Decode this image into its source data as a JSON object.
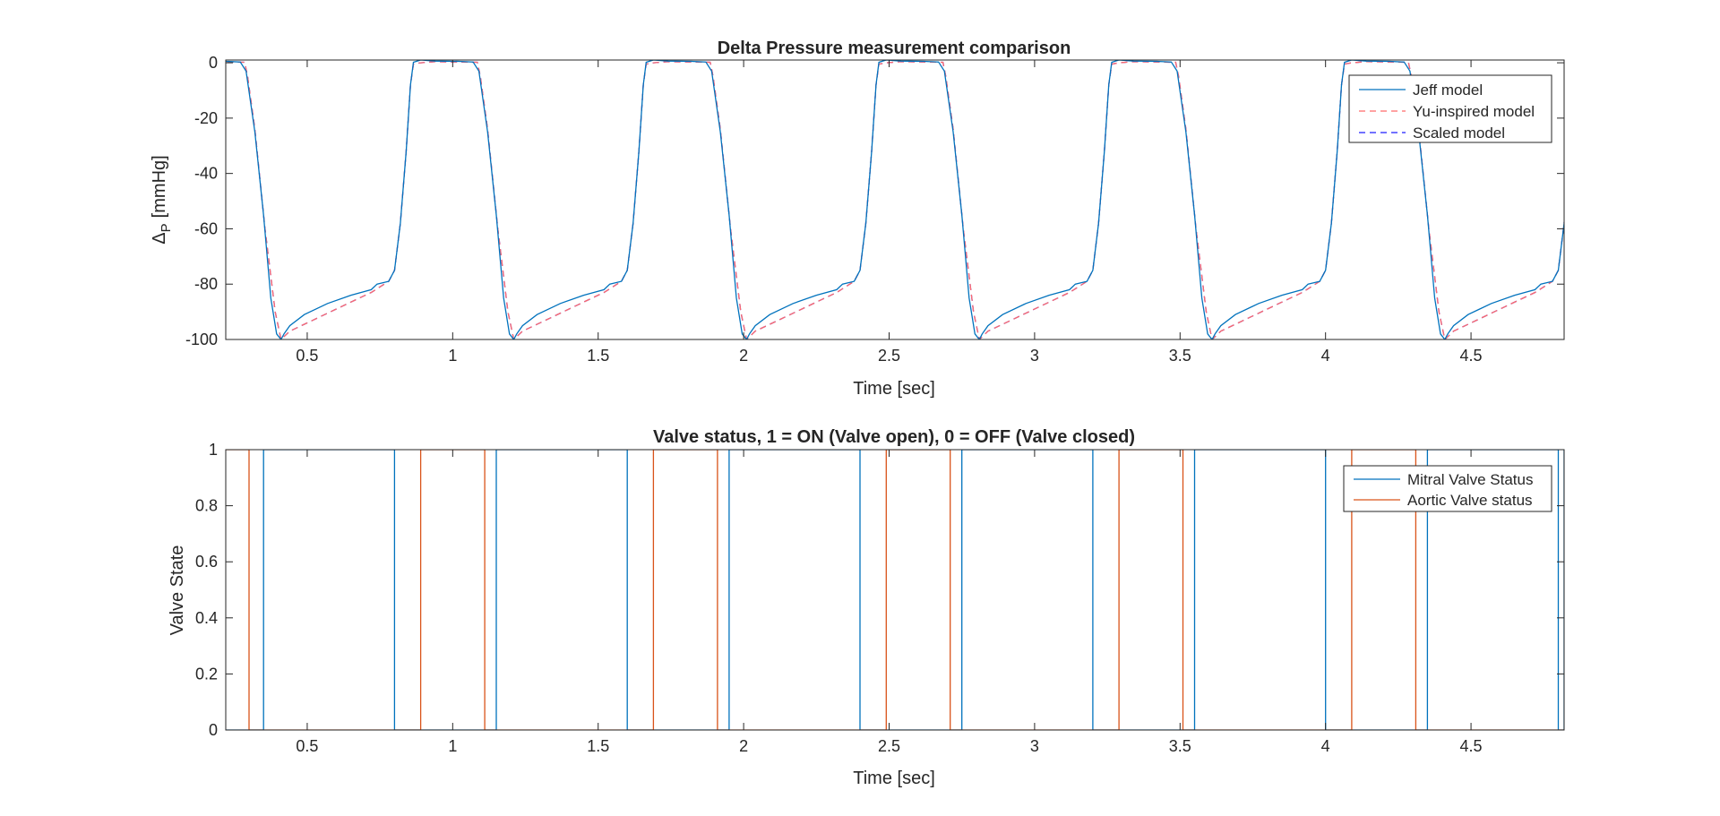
{
  "chart_data": [
    {
      "type": "line",
      "title": "Delta Pressure measurement comparison",
      "xlabel": "Time [sec]",
      "ylabel_main": "Δ",
      "ylabel_sub": "P",
      "ylabel_unit": "[mmHg]",
      "xlim": [
        0.22,
        4.82
      ],
      "ylim": [
        -100,
        1
      ],
      "xticks": [
        0.5,
        1,
        1.5,
        2,
        2.5,
        3,
        3.5,
        4,
        4.5
      ],
      "xtick_labels": [
        "0.5",
        "1",
        "1.5",
        "2",
        "2.5",
        "3",
        "3.5",
        "4",
        "4.5"
      ],
      "yticks": [
        0,
        -20,
        -40,
        -60,
        -80,
        -100
      ],
      "ytick_labels": [
        "0",
        "-20",
        "-40",
        "-60",
        "-80",
        "-100"
      ],
      "grid": false,
      "legend_position": "top-right",
      "period": 0.8,
      "series": [
        {
          "name": "Jeff model",
          "color": "#0072BD",
          "dash": "solid",
          "cycle": [
            [
              0.0,
              0.5
            ],
            [
              0.05,
              0.3
            ],
            [
              0.07,
              -3
            ],
            [
              0.1,
              -25
            ],
            [
              0.13,
              -55
            ],
            [
              0.155,
              -85
            ],
            [
              0.175,
              -98
            ],
            [
              0.19,
              -100
            ],
            [
              0.2,
              -98
            ],
            [
              0.22,
              -95
            ],
            [
              0.27,
              -91
            ],
            [
              0.35,
              -87
            ],
            [
              0.43,
              -84
            ],
            [
              0.5,
              -82
            ],
            [
              0.52,
              -80
            ],
            [
              0.56,
              -79
            ],
            [
              0.58,
              -75
            ],
            [
              0.6,
              -58
            ],
            [
              0.62,
              -32
            ],
            [
              0.635,
              -8
            ],
            [
              0.645,
              0.2
            ],
            [
              0.67,
              1
            ],
            [
              0.72,
              0.6
            ],
            [
              0.8,
              0.5
            ]
          ]
        },
        {
          "name": "Yu-inspired model",
          "color": "#FF6B6B",
          "dash": "dashed",
          "cycle": [
            [
              0.0,
              0.3
            ],
            [
              0.065,
              0.2
            ],
            [
              0.075,
              -5
            ],
            [
              0.1,
              -24
            ],
            [
              0.135,
              -60
            ],
            [
              0.17,
              -90
            ],
            [
              0.19,
              -100
            ],
            [
              0.22,
              -97
            ],
            [
              0.3,
              -93
            ],
            [
              0.4,
              -88
            ],
            [
              0.5,
              -83
            ],
            [
              0.56,
              -79
            ],
            [
              0.58,
              -75
            ],
            [
              0.6,
              -58
            ],
            [
              0.62,
              -32
            ],
            [
              0.635,
              -8
            ],
            [
              0.645,
              -0.5
            ],
            [
              0.67,
              0
            ],
            [
              0.72,
              0.4
            ],
            [
              0.8,
              0.3
            ]
          ]
        },
        {
          "name": "Scaled model",
          "color": "#1F1FFF",
          "dash": "dashed",
          "cycle": [
            [
              0.0,
              0.3
            ],
            [
              0.065,
              0.2
            ],
            [
              0.075,
              -5
            ],
            [
              0.1,
              -24
            ],
            [
              0.135,
              -60
            ],
            [
              0.17,
              -90
            ],
            [
              0.19,
              -100
            ],
            [
              0.22,
              -97
            ],
            [
              0.3,
              -93
            ],
            [
              0.4,
              -88
            ],
            [
              0.5,
              -83
            ],
            [
              0.56,
              -79
            ],
            [
              0.58,
              -75
            ],
            [
              0.6,
              -58
            ],
            [
              0.62,
              -32
            ],
            [
              0.635,
              -8
            ],
            [
              0.645,
              -0.5
            ],
            [
              0.67,
              0
            ],
            [
              0.72,
              0.4
            ],
            [
              0.8,
              0.3
            ]
          ]
        }
      ]
    },
    {
      "type": "line",
      "title": "Valve status, 1 = ON (Valve open), 0 = OFF (Valve closed)",
      "xlabel": "Time [sec]",
      "ylabel": "Valve State",
      "xlim": [
        0.22,
        4.82
      ],
      "ylim": [
        0,
        1
      ],
      "xticks": [
        0.5,
        1,
        1.5,
        2,
        2.5,
        3,
        3.5,
        4,
        4.5
      ],
      "xtick_labels": [
        "0.5",
        "1",
        "1.5",
        "2",
        "2.5",
        "3",
        "3.5",
        "4",
        "4.5"
      ],
      "yticks": [
        0,
        0.2,
        0.4,
        0.6,
        0.8,
        1
      ],
      "ytick_labels": [
        "0",
        "0.2",
        "0.4",
        "0.6",
        "0.8",
        "1"
      ],
      "grid": false,
      "legend_position": "top-right",
      "series": [
        {
          "name": "Mitral Valve Status",
          "color": "#0072BD",
          "initial": 0,
          "transitions": [
            0.35,
            0.8,
            1.15,
            1.6,
            1.95,
            2.4,
            2.75,
            3.2,
            3.55,
            4.0,
            4.35,
            4.8,
            4.82
          ]
        },
        {
          "name": "Aortic Valve status",
          "color": "#D95319",
          "initial": 1,
          "transitions": [
            0.3,
            0.89,
            1.11,
            1.69,
            1.91,
            2.49,
            2.71,
            3.29,
            3.51,
            4.09,
            4.31
          ]
        }
      ]
    }
  ]
}
